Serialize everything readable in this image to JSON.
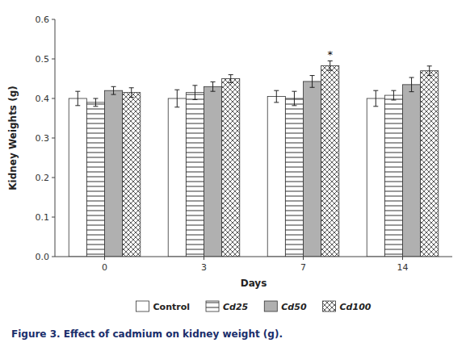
{
  "chart_data": {
    "type": "bar",
    "caption": "Figure 3. Effect of cadmium on kidney weight (g).",
    "x_label": "Days",
    "y_label": "Kidney Weights (g)",
    "categories": [
      "0",
      "3",
      "7",
      "14"
    ],
    "series": [
      {
        "name": "Control",
        "color": "#ffffff",
        "values": [
          0.4,
          0.4,
          0.405,
          0.4
        ],
        "errors": [
          0.018,
          0.022,
          0.015,
          0.02
        ]
      },
      {
        "name": "Cd25",
        "color": "#ffffff",
        "values": [
          0.39,
          0.415,
          0.4,
          0.408
        ],
        "errors": [
          0.01,
          0.018,
          0.018,
          0.012
        ]
      },
      {
        "name": "Cd50",
        "color": "#b0b0b0",
        "values": [
          0.42,
          0.43,
          0.443,
          0.435
        ],
        "errors": [
          0.01,
          0.012,
          0.015,
          0.018
        ]
      },
      {
        "name": "Cd100",
        "color": "#ffffff",
        "values": [
          0.415,
          0.45,
          0.483,
          0.47
        ],
        "errors": [
          0.012,
          0.01,
          0.012,
          0.012
        ]
      }
    ],
    "annotations": [
      {
        "text": "*",
        "series": 3,
        "category": 2
      }
    ],
    "ylim": [
      0,
      0.6
    ],
    "yticks": [
      {
        "value": 0,
        "label": "0.0"
      },
      0.1,
      0.2,
      0.3,
      0.4,
      0.5,
      0.6
    ],
    "grid": false,
    "legend": "bottom"
  }
}
